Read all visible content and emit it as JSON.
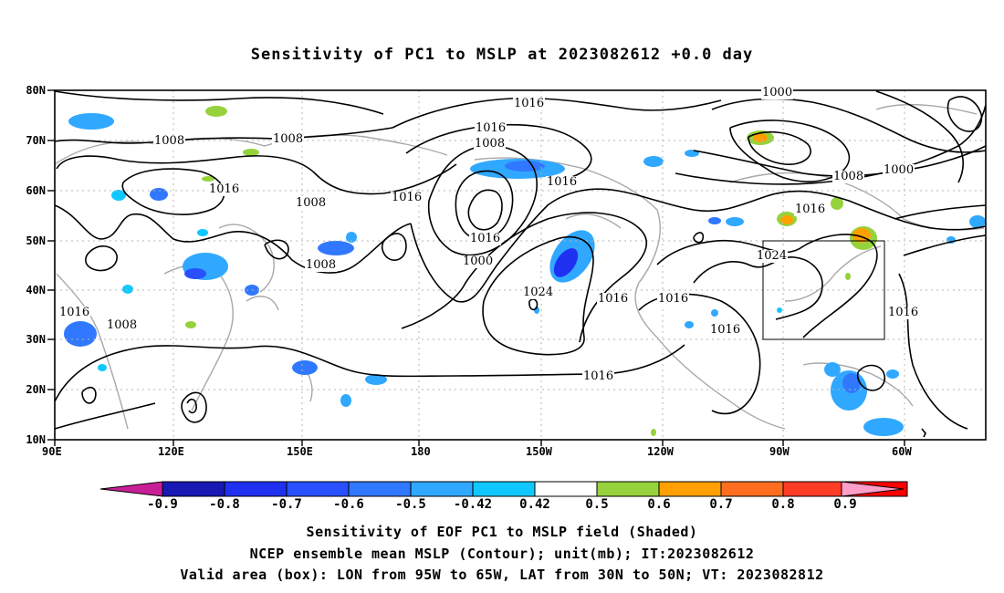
{
  "title": "Sensitivity of PC1 to MSLP at 2023082612 +0.0 day",
  "map": {
    "lat_labels": [
      "80N",
      "70N",
      "60N",
      "50N",
      "40N",
      "30N",
      "20N",
      "10N"
    ],
    "lon_labels": [
      "90E",
      "120E",
      "150E",
      "180",
      "150W",
      "120W",
      "90W",
      "60W"
    ],
    "contour_labels": [
      "1016",
      "1016",
      "1008",
      "1008",
      "1008",
      "1016",
      "1008",
      "1016",
      "1016",
      "1016",
      "1000",
      "1008",
      "1016",
      "1024",
      "1016",
      "1016",
      "1016",
      "1000",
      "1000",
      "1008",
      "1016",
      "1024",
      "1016",
      "1016",
      "1008",
      "1008",
      "1016"
    ],
    "box": {
      "lon_from": "95W",
      "lon_to": "65W",
      "lat_from": "30N",
      "lat_to": "50N"
    }
  },
  "colorbar": {
    "labels": [
      "-0.9",
      "-0.8",
      "-0.7",
      "-0.6",
      "-0.5",
      "-0.42",
      "0.42",
      "0.5",
      "0.6",
      "0.7",
      "0.8",
      "0.9"
    ],
    "colors": [
      "#1818b4",
      "#2030f0",
      "#2850ff",
      "#3078ff",
      "#30a8ff",
      "#10c8ff",
      "#ffffff",
      "#96d23c",
      "#ffa000",
      "#ff6e1e",
      "#ff3c28",
      "#ff0000"
    ],
    "low_end_color": "#c81e96",
    "high_end_color": "#ff9ec8"
  },
  "captions": {
    "line1": "Sensitivity of EOF PC1 to MSLP field (Shaded)",
    "line2": "NCEP ensemble mean MSLP (Contour); unit(mb); IT:2023082612",
    "line3": "Valid area (box): LON from 95W to 65W, LAT from 30N to 50N; VT: 2023082812"
  }
}
